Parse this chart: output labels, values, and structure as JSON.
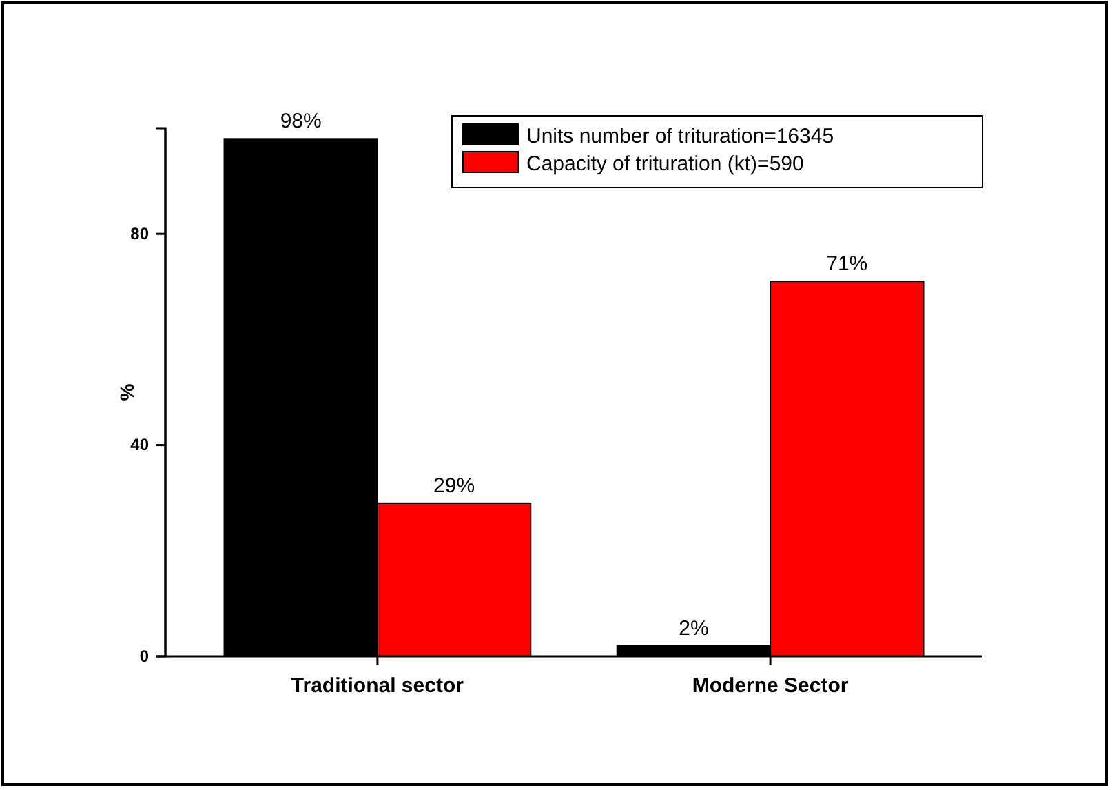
{
  "chart_data": {
    "type": "bar",
    "ylabel": "%",
    "categories": [
      "Traditional sector",
      "Moderne Sector"
    ],
    "series": [
      {
        "name": "Units number of trituration=16345",
        "color": "#000000",
        "values": [
          98,
          2
        ],
        "value_labels": [
          "98%",
          "2%"
        ]
      },
      {
        "name": "Capacity of trituration (kt)=590",
        "color": "#ff0000",
        "values": [
          29,
          71
        ],
        "value_labels": [
          "29%",
          "71%"
        ]
      }
    ],
    "ylim": [
      0,
      100
    ],
    "yticks": [
      0,
      40,
      80
    ],
    "legend": "top right",
    "grid": false
  }
}
